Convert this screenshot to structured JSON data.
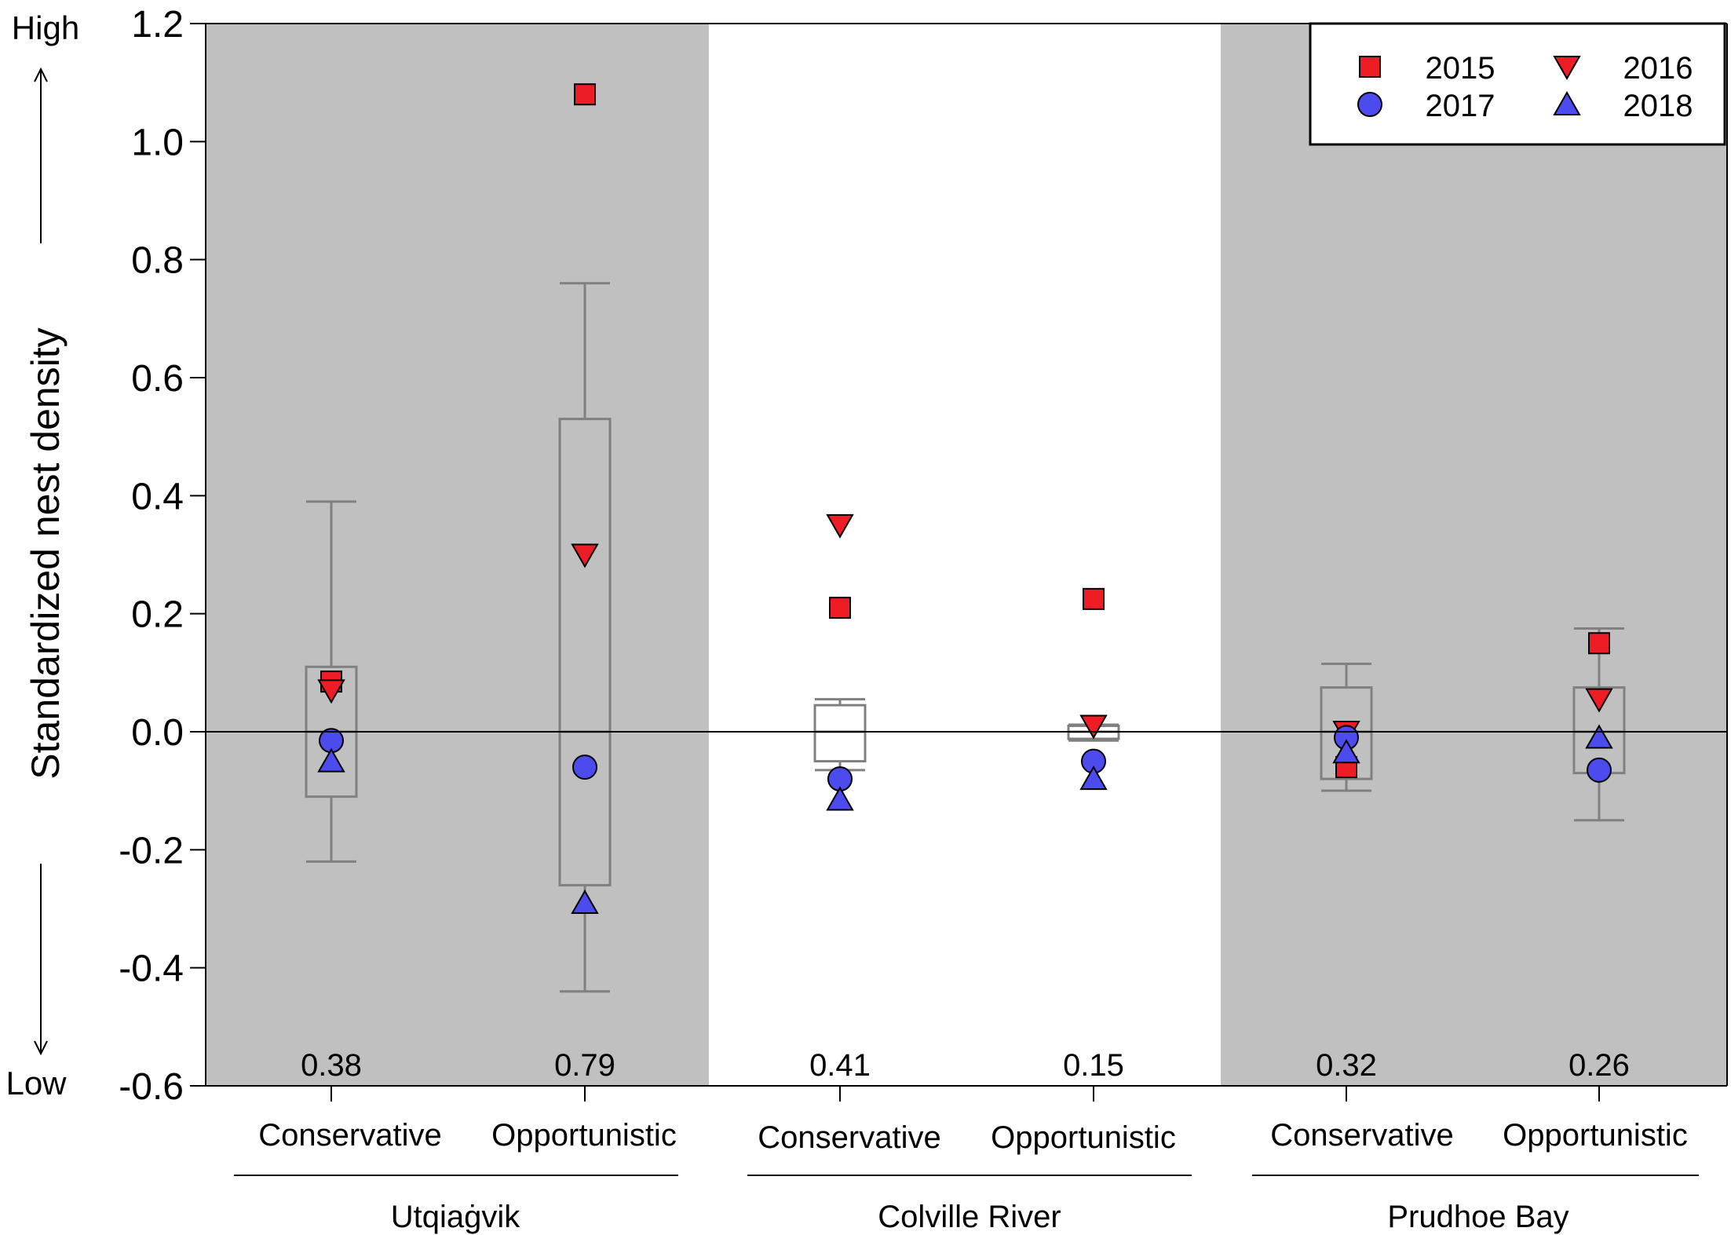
{
  "chart_data": {
    "type": "box",
    "ylabel": "Standardized nest density",
    "ylim": [
      -0.6,
      1.2
    ],
    "yticks": [
      "-0.6",
      "-0.4",
      "-0.2",
      "0.0",
      "0.2",
      "0.4",
      "0.6",
      "0.8",
      "1.0",
      "1.2"
    ],
    "ytick_values": [
      -0.6,
      -0.4,
      -0.2,
      0.0,
      0.2,
      0.4,
      0.6,
      0.8,
      1.0,
      1.2
    ],
    "high_label": "High",
    "low_label": "Low",
    "reference_line": 0.0,
    "legend_position": "top-right",
    "series": [
      {
        "name": "2015",
        "marker": "square",
        "color": "#ee1c25"
      },
      {
        "name": "2016",
        "marker": "triangle-down",
        "color": "#ee1c25"
      },
      {
        "name": "2017",
        "marker": "circle",
        "color": "#4c4cee"
      },
      {
        "name": "2018",
        "marker": "triangle-up",
        "color": "#4c4cee"
      }
    ],
    "regions": [
      {
        "name": "Utqiaġvik",
        "shaded": true
      },
      {
        "name": "Colville River",
        "shaded": false
      },
      {
        "name": "Prudhoe Bay",
        "shaded": true
      }
    ],
    "groups": [
      {
        "region": "Utqiaġvik",
        "category": "Conservative",
        "annotation": "0.38",
        "box": {
          "whisker_low": -0.22,
          "q1": -0.11,
          "median": 0.0,
          "q3": 0.11,
          "whisker_high": 0.39
        },
        "points": {
          "2015": 0.085,
          "2016": 0.07,
          "2017": -0.015,
          "2018": -0.05
        }
      },
      {
        "region": "Utqiaġvik",
        "category": "Opportunistic",
        "annotation": "0.79",
        "box": {
          "whisker_low": -0.44,
          "q1": -0.26,
          "median": 0.0,
          "q3": 0.53,
          "whisker_high": 0.76
        },
        "points": {
          "2015": 1.08,
          "2016": 0.3,
          "2017": -0.06,
          "2018": -0.29
        }
      },
      {
        "region": "Colville River",
        "category": "Conservative",
        "annotation": "0.41",
        "box": {
          "whisker_low": -0.065,
          "q1": -0.05,
          "median": 0.0,
          "q3": 0.045,
          "whisker_high": 0.055
        },
        "points": {
          "2015": 0.21,
          "2016": 0.35,
          "2017": -0.08,
          "2018": -0.115
        }
      },
      {
        "region": "Colville River",
        "category": "Opportunistic",
        "annotation": "0.15",
        "box": {
          "whisker_low": -0.015,
          "q1": -0.012,
          "median": 0.0,
          "q3": 0.01,
          "whisker_high": 0.012
        },
        "points": {
          "2015": 0.225,
          "2016": 0.01,
          "2017": -0.05,
          "2018": -0.08
        }
      },
      {
        "region": "Prudhoe Bay",
        "category": "Conservative",
        "annotation": "0.32",
        "box": {
          "whisker_low": -0.1,
          "q1": -0.08,
          "median": 0.0,
          "q3": 0.075,
          "whisker_high": 0.115
        },
        "points": {
          "2015": -0.06,
          "2016": 0.0,
          "2017": -0.01,
          "2018": -0.035
        }
      },
      {
        "region": "Prudhoe Bay",
        "category": "Opportunistic",
        "annotation": "0.26",
        "box": {
          "whisker_low": -0.15,
          "q1": -0.07,
          "median": 0.0,
          "q3": 0.075,
          "whisker_high": 0.175
        },
        "points": {
          "2015": 0.15,
          "2016": 0.055,
          "2017": -0.065,
          "2018": -0.01
        }
      }
    ]
  }
}
